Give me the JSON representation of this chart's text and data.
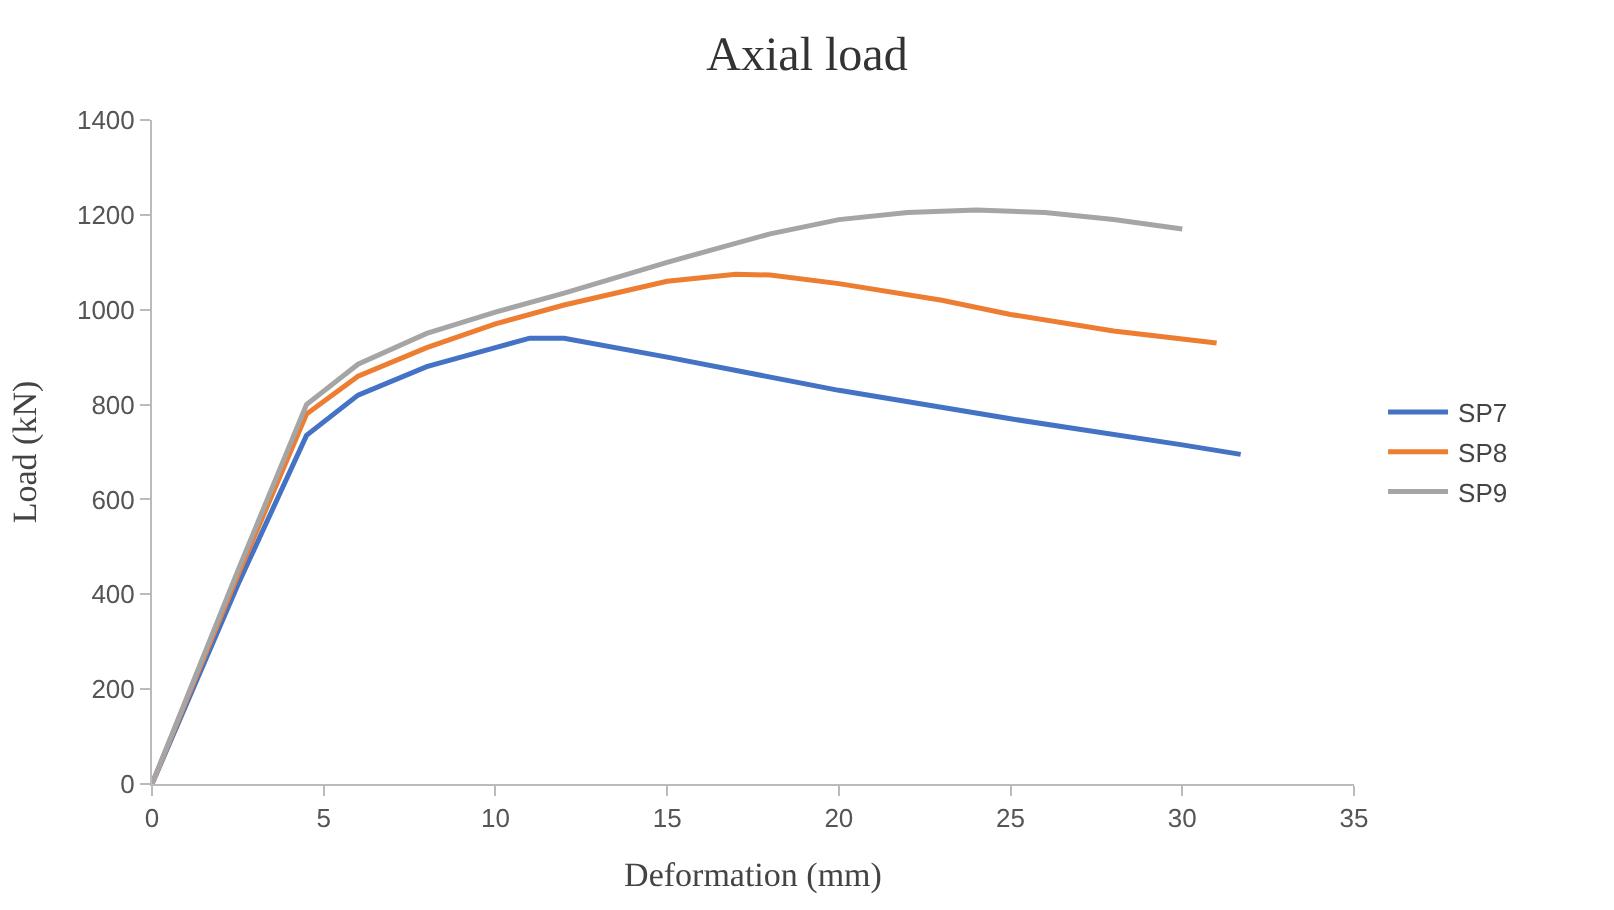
{
  "chart_data": {
    "type": "line",
    "title": "Axial load",
    "xlabel": "Deformation (mm)",
    "ylabel": "Load (kN)",
    "xlim": [
      0,
      35
    ],
    "xticks": [
      0,
      5,
      10,
      15,
      20,
      25,
      30,
      35
    ],
    "ylim": [
      0,
      1400
    ],
    "yticks": [
      0,
      200,
      400,
      600,
      800,
      1000,
      1200,
      1400
    ],
    "grid": false,
    "legend": "right",
    "marker": "none",
    "series": [
      {
        "name": "SP7",
        "color": "#4472c4",
        "x": [
          0,
          2.5,
          4.5,
          6,
          8,
          10,
          11,
          12,
          15,
          20,
          25,
          30,
          31.7
        ],
        "values": [
          0,
          420,
          735,
          820,
          880,
          920,
          940,
          940,
          900,
          830,
          770,
          715,
          695
        ]
      },
      {
        "name": "SP8",
        "color": "#ed7d31",
        "x": [
          0,
          2.5,
          4.5,
          6,
          8,
          10,
          12,
          15,
          17,
          18,
          20,
          23,
          25,
          28,
          31
        ],
        "values": [
          0,
          440,
          780,
          860,
          920,
          970,
          1010,
          1060,
          1075,
          1073,
          1055,
          1020,
          990,
          955,
          930
        ]
      },
      {
        "name": "SP9",
        "color": "#a5a5a5",
        "x": [
          0,
          2.5,
          4.5,
          6,
          8,
          10,
          12,
          15,
          18,
          20,
          22,
          24,
          26,
          28,
          30
        ],
        "values": [
          0,
          450,
          800,
          885,
          950,
          995,
          1035,
          1100,
          1160,
          1190,
          1205,
          1210,
          1205,
          1190,
          1170
        ]
      }
    ]
  }
}
